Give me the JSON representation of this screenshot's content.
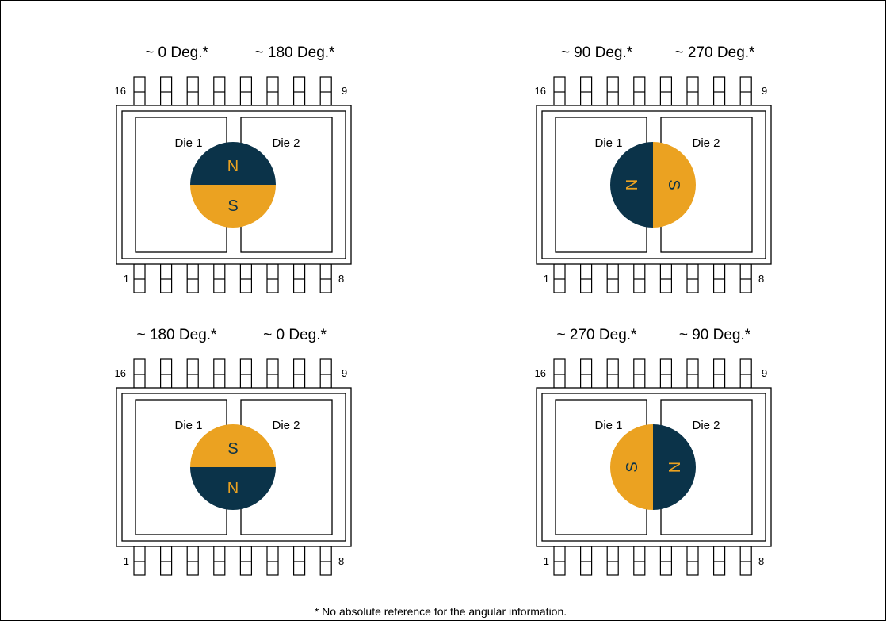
{
  "colors": {
    "north": "#0b3349",
    "south": "#eba221",
    "pole_text": "#eba221",
    "line": "#000000",
    "background": "#ffffff"
  },
  "panels": [
    {
      "id": "top-left",
      "angle_left": "~ 0 Deg.*",
      "angle_right": "~ 180 Deg.*",
      "die1": "Die 1",
      "die2": "Die 2",
      "pins": {
        "top_left": "16",
        "top_right": "9",
        "bottom_left": "1",
        "bottom_right": "8"
      },
      "magnet": {
        "orientation": "N-up",
        "first_label": "N",
        "second_label": "S"
      }
    },
    {
      "id": "top-right",
      "angle_left": "~ 90 Deg.*",
      "angle_right": "~ 270 Deg.*",
      "die1": "Die 1",
      "die2": "Die 2",
      "pins": {
        "top_left": "16",
        "top_right": "9",
        "bottom_left": "1",
        "bottom_right": "8"
      },
      "magnet": {
        "orientation": "N-left",
        "first_label": "N",
        "second_label": "S"
      }
    },
    {
      "id": "bottom-left",
      "angle_left": "~ 180 Deg.*",
      "angle_right": "~ 0 Deg.*",
      "die1": "Die 1",
      "die2": "Die 2",
      "pins": {
        "top_left": "16",
        "top_right": "9",
        "bottom_left": "1",
        "bottom_right": "8"
      },
      "magnet": {
        "orientation": "S-up",
        "first_label": "S",
        "second_label": "N"
      }
    },
    {
      "id": "bottom-right",
      "angle_left": "~ 270 Deg.*",
      "angle_right": "~ 90 Deg.*",
      "die1": "Die 1",
      "die2": "Die 2",
      "pins": {
        "top_left": "16",
        "top_right": "9",
        "bottom_left": "1",
        "bottom_right": "8"
      },
      "magnet": {
        "orientation": "S-left",
        "first_label": "S",
        "second_label": "N"
      }
    }
  ],
  "footnote": "* No absolute reference for the angular information."
}
